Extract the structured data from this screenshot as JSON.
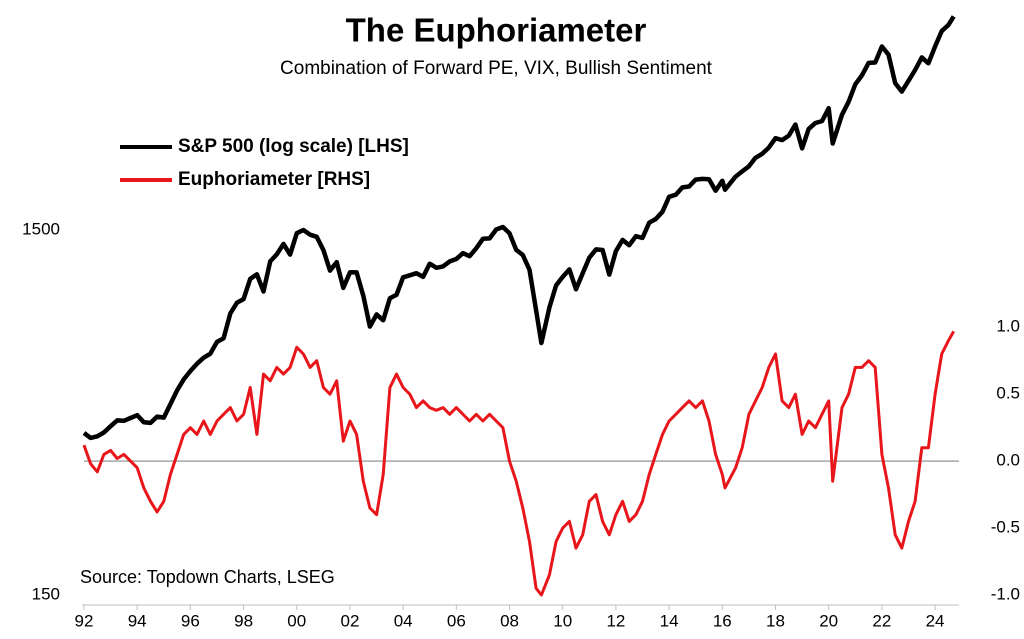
{
  "chart_data": {
    "type": "line",
    "title": "The Euphoriameter",
    "subtitle": "Combination of Forward PE, VIX, Bullish Sentiment",
    "annotation": "Source: Topdown Charts, LSEG",
    "log_scale": true,
    "legend": "top-left",
    "x": [
      1992,
      1992.25,
      1992.5,
      1992.75,
      1993,
      1993.25,
      1993.5,
      1993.75,
      1994,
      1994.25,
      1994.5,
      1994.75,
      1995,
      1995.25,
      1995.5,
      1995.75,
      1996,
      1996.25,
      1996.5,
      1996.75,
      1997,
      1997.25,
      1997.5,
      1997.75,
      1998,
      1998.25,
      1998.5,
      1998.75,
      1999,
      1999.25,
      1999.5,
      1999.75,
      2000,
      2000.25,
      2000.5,
      2000.75,
      2001,
      2001.25,
      2001.5,
      2001.75,
      2002,
      2002.25,
      2002.5,
      2002.75,
      2003,
      2003.25,
      2003.5,
      2003.75,
      2004,
      2004.25,
      2004.5,
      2004.75,
      2005,
      2005.25,
      2005.5,
      2005.75,
      2006,
      2006.25,
      2006.5,
      2006.75,
      2007,
      2007.25,
      2007.5,
      2007.75,
      2008,
      2008.25,
      2008.5,
      2008.75,
      2009,
      2009.2,
      2009.5,
      2009.75,
      2010,
      2010.25,
      2010.5,
      2010.75,
      2011,
      2011.25,
      2011.5,
      2011.75,
      2012,
      2012.25,
      2012.5,
      2012.75,
      2013,
      2013.25,
      2013.5,
      2013.75,
      2014,
      2014.25,
      2014.5,
      2014.75,
      2015,
      2015.25,
      2015.5,
      2015.75,
      2016,
      2016.1,
      2016.5,
      2016.75,
      2017,
      2017.25,
      2017.5,
      2017.75,
      2018,
      2018.25,
      2018.5,
      2018.75,
      2019,
      2019.25,
      2019.5,
      2019.75,
      2020,
      2020.15,
      2020.5,
      2020.75,
      2021,
      2021.25,
      2021.5,
      2021.75,
      2022,
      2022.25,
      2022.5,
      2022.75,
      2023,
      2023.25,
      2023.5,
      2023.75,
      2024,
      2024.25,
      2024.5,
      2024.7
    ],
    "series": [
      {
        "name": "S&P 500 (log scale) [LHS]",
        "color": "#000000",
        "axis": "y",
        "values": [
          417,
          404,
          408,
          418,
          435,
          451,
          450,
          458,
          466,
          446,
          444,
          462,
          459,
          500,
          545,
          584,
          616,
          645,
          670,
          687,
          740,
          757,
          885,
          947,
          970,
          1101,
          1133,
          1017,
          1229,
          1286,
          1373,
          1283,
          1469,
          1499,
          1455,
          1436,
          1320,
          1160,
          1224,
          1040,
          1148,
          1147,
          990,
          815,
          880,
          848,
          975,
          996,
          1112,
          1126,
          1141,
          1115,
          1212,
          1181,
          1191,
          1229,
          1248,
          1295,
          1270,
          1336,
          1418,
          1421,
          1503,
          1527,
          1468,
          1323,
          1280,
          1166,
          903,
          735,
          919,
          1057,
          1115,
          1169,
          1031,
          1141,
          1258,
          1326,
          1321,
          1131,
          1312,
          1408,
          1362,
          1441,
          1426,
          1569,
          1606,
          1682,
          1848,
          1872,
          1960,
          1972,
          2059,
          2068,
          2063,
          1920,
          2044,
          1932,
          2099,
          2168,
          2239,
          2363,
          2423,
          2519,
          2674,
          2641,
          2718,
          2914,
          2507,
          2834,
          2942,
          2977,
          3231,
          2585,
          3100,
          3363,
          3756,
          3973,
          4298,
          4308,
          4766,
          4530,
          3785,
          3586,
          3840,
          4109,
          4450,
          4288,
          4770,
          5254,
          5460,
          5762
        ]
      },
      {
        "name": "Euphoriameter [RHS]",
        "color": "#e8161b",
        "axis": "y2",
        "values": [
          0.12,
          -0.02,
          -0.08,
          0.05,
          0.08,
          0.02,
          0.05,
          0.0,
          -0.05,
          -0.2,
          -0.3,
          -0.38,
          -0.3,
          -0.1,
          0.05,
          0.2,
          0.25,
          0.2,
          0.3,
          0.2,
          0.3,
          0.35,
          0.4,
          0.3,
          0.35,
          0.55,
          0.2,
          0.65,
          0.6,
          0.7,
          0.65,
          0.7,
          0.85,
          0.8,
          0.7,
          0.75,
          0.55,
          0.5,
          0.6,
          0.15,
          0.3,
          0.2,
          -0.15,
          -0.35,
          -0.4,
          -0.1,
          0.55,
          0.65,
          0.55,
          0.5,
          0.4,
          0.45,
          0.4,
          0.38,
          0.4,
          0.35,
          0.4,
          0.35,
          0.3,
          0.35,
          0.3,
          0.35,
          0.3,
          0.25,
          0.0,
          -0.15,
          -0.35,
          -0.6,
          -0.95,
          -1.0,
          -0.85,
          -0.6,
          -0.5,
          -0.45,
          -0.65,
          -0.55,
          -0.3,
          -0.25,
          -0.45,
          -0.55,
          -0.4,
          -0.3,
          -0.45,
          -0.4,
          -0.3,
          -0.1,
          0.05,
          0.2,
          0.3,
          0.35,
          0.4,
          0.45,
          0.4,
          0.45,
          0.3,
          0.05,
          -0.1,
          -0.2,
          -0.05,
          0.1,
          0.35,
          0.45,
          0.55,
          0.7,
          0.8,
          0.45,
          0.4,
          0.5,
          0.2,
          0.3,
          0.25,
          0.35,
          0.45,
          -0.15,
          0.4,
          0.5,
          0.7,
          0.7,
          0.75,
          0.7,
          0.05,
          -0.2,
          -0.55,
          -0.65,
          -0.45,
          -0.3,
          0.1,
          0.1,
          0.5,
          0.8,
          0.9,
          0.97
        ]
      }
    ],
    "xlim": [
      1992,
      2024.9
    ],
    "xticks": [
      {
        "value": 1992,
        "label": "92"
      },
      {
        "value": 1994,
        "label": "94"
      },
      {
        "value": 1996,
        "label": "96"
      },
      {
        "value": 1998,
        "label": "98"
      },
      {
        "value": 2000,
        "label": "00"
      },
      {
        "value": 2002,
        "label": "02"
      },
      {
        "value": 2004,
        "label": "04"
      },
      {
        "value": 2006,
        "label": "06"
      },
      {
        "value": 2008,
        "label": "08"
      },
      {
        "value": 2010,
        "label": "10"
      },
      {
        "value": 2012,
        "label": "12"
      },
      {
        "value": 2014,
        "label": "14"
      },
      {
        "value": 2016,
        "label": "16"
      },
      {
        "value": 2018,
        "label": "18"
      },
      {
        "value": 2020,
        "label": "20"
      },
      {
        "value": 2022,
        "label": "22"
      },
      {
        "value": 2024,
        "label": "24"
      }
    ],
    "ylim": [
      150,
      6000
    ],
    "yticks": [
      150,
      1500
    ],
    "y2lim": [
      -1,
      3.37
    ],
    "y2ticks": [
      {
        "value": -1,
        "label": "-1.0"
      },
      -0.5,
      {
        "value": 0,
        "label": "0.0"
      },
      0.5,
      {
        "value": 1,
        "label": "1.0"
      }
    ]
  }
}
